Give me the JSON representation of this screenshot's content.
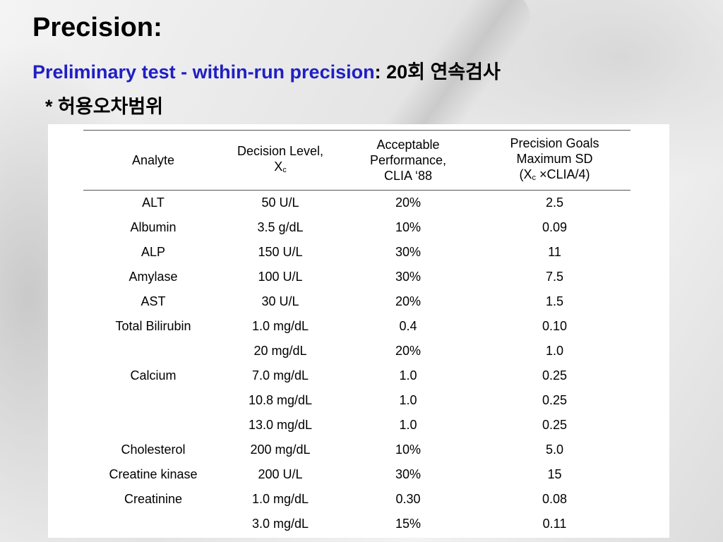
{
  "slide": {
    "title": "Precision:",
    "subtitle_blue": "Preliminary test - within-run precision",
    "subtitle_black": ": 20회 연속검사",
    "note": "* 허용오차범위"
  },
  "table": {
    "headers": {
      "analyte": "Analyte",
      "decision_line1": "Decision Level,",
      "decision_line2": "X",
      "decision_sub": "c",
      "acceptable_line1": "Acceptable",
      "acceptable_line2": "Performance,",
      "acceptable_line3": "CLIA ‘88",
      "goals_line1": "Precision Goals",
      "goals_line2": "Maximum SD",
      "goals_line3_a": "(X",
      "goals_line3_sub": "c",
      "goals_line3_b": " ×CLIA/4)"
    },
    "rows": [
      {
        "analyte": "ALT",
        "level": "50 U/L",
        "acceptable": "20%",
        "sd": "2.5"
      },
      {
        "analyte": "Albumin",
        "level": "3.5 g/dL",
        "acceptable": "10%",
        "sd": "0.09"
      },
      {
        "analyte": "ALP",
        "level": "150 U/L",
        "acceptable": "30%",
        "sd": "11"
      },
      {
        "analyte": "Amylase",
        "level": "100 U/L",
        "acceptable": "30%",
        "sd": "7.5"
      },
      {
        "analyte": "AST",
        "level": "30 U/L",
        "acceptable": "20%",
        "sd": "1.5"
      },
      {
        "analyte": "Total Bilirubin",
        "level": "1.0 mg/dL",
        "acceptable": "0.4",
        "sd": "0.10"
      },
      {
        "analyte": "",
        "level": "20 mg/dL",
        "acceptable": "20%",
        "sd": "1.0"
      },
      {
        "analyte": "Calcium",
        "level": "7.0 mg/dL",
        "acceptable": "1.0",
        "sd": "0.25"
      },
      {
        "analyte": "",
        "level": "10.8 mg/dL",
        "acceptable": "1.0",
        "sd": "0.25"
      },
      {
        "analyte": "",
        "level": "13.0 mg/dL",
        "acceptable": "1.0",
        "sd": "0.25"
      },
      {
        "analyte": "Cholesterol",
        "level": "200 mg/dL",
        "acceptable": "10%",
        "sd": "5.0"
      },
      {
        "analyte": "Creatine kinase",
        "level": "200 U/L",
        "acceptable": "30%",
        "sd": "15"
      },
      {
        "analyte": "Creatinine",
        "level": "1.0 mg/dL",
        "acceptable": "0.30",
        "sd": "0.08"
      },
      {
        "analyte": "",
        "level": "3.0 mg/dL",
        "acceptable": "15%",
        "sd": "0.11"
      }
    ]
  }
}
